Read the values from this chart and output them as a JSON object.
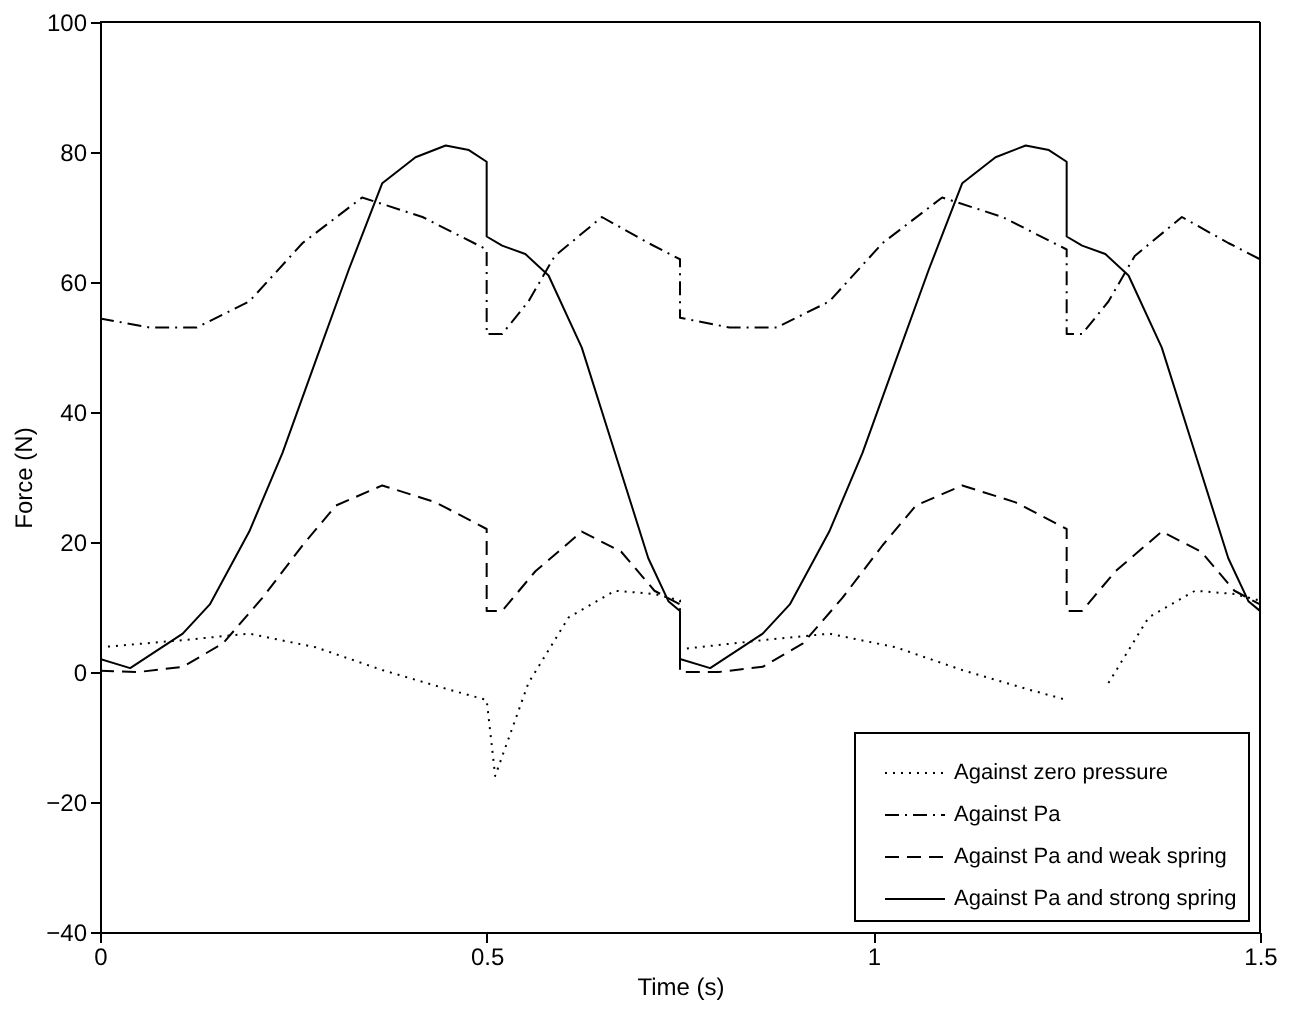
{
  "chart_data": {
    "type": "line",
    "xlabel": "Time (s)",
    "ylabel": "Force (N)",
    "xlim": [
      0,
      1.5
    ],
    "xticks": [
      0,
      0.5,
      1,
      1.5
    ],
    "ylim": [
      -40,
      100
    ],
    "yticks": [
      -40,
      -20,
      0,
      20,
      40,
      60,
      80,
      100
    ],
    "grid": false,
    "legend": "bottom right",
    "marker": "none",
    "series": [
      {
        "name": "Against zero pressure",
        "color": "#000000",
        "line_style": "dotted",
        "x": [
          0,
          0.107,
          0.193,
          0.279,
          0.365,
          0.451,
          0.5,
          0.511,
          0.554,
          0.606,
          0.666,
          0.717,
          0.75,
          0.75,
          0.857,
          0.943,
          1.029,
          1.115,
          1.201,
          1.25,
          1.261,
          1.304,
          1.356,
          1.416,
          1.467,
          1.5
        ],
        "values": [
          3.8,
          4.9,
          5.9,
          3.8,
          0.3,
          -2.7,
          -4.3,
          -16,
          -1.7,
          8.4,
          12.5,
          12,
          11,
          3.5,
          4.9,
          5.9,
          3.8,
          0.3,
          -2.7,
          -4.3,
          null,
          -1.7,
          8.4,
          12.5,
          12,
          11
        ]
      },
      {
        "name": "Against Pa",
        "color": "#000000",
        "line_style": "dashdot",
        "x": [
          0,
          0.064,
          0.125,
          0.193,
          0.262,
          0.339,
          0.417,
          0.5,
          0.5,
          0.52,
          0.554,
          0.588,
          0.649,
          0.709,
          0.75,
          0.75,
          0.814,
          0.875,
          0.943,
          1.012,
          1.089,
          1.167,
          1.25,
          1.25,
          1.27,
          1.304,
          1.338,
          1.399,
          1.459,
          1.5
        ],
        "values": [
          54.4,
          53,
          53,
          57,
          66,
          73,
          70,
          65,
          52,
          52,
          57,
          64,
          70,
          66,
          63.5,
          54.5,
          53,
          53,
          57,
          66,
          73,
          70,
          65,
          52,
          52,
          57,
          64,
          70,
          66,
          63.5
        ]
      },
      {
        "name": "Against Pa and weak spring",
        "color": "#000000",
        "line_style": "dashed",
        "x": [
          0,
          0.05,
          0.107,
          0.159,
          0.21,
          0.262,
          0.305,
          0.365,
          0.434,
          0.5,
          0.5,
          0.52,
          0.563,
          0.623,
          0.674,
          0.717,
          0.75,
          0.75,
          0.8,
          0.857,
          0.909,
          0.96,
          1.012,
          1.055,
          1.115,
          1.184,
          1.25,
          1.25,
          1.27,
          1.313,
          1.373,
          1.424,
          1.467,
          1.5
        ],
        "values": [
          0.2,
          0,
          0.8,
          4.4,
          11.4,
          19.5,
          25.6,
          28.7,
          26.1,
          22,
          9.4,
          9.4,
          15.5,
          21.6,
          18.5,
          12.5,
          10.4,
          0,
          0,
          0.8,
          4.4,
          11.4,
          19.5,
          25.6,
          28.7,
          26.1,
          22,
          9.4,
          9.4,
          15.5,
          21.6,
          18.5,
          12.5,
          10.4
        ]
      },
      {
        "name": "Against Pa and strong spring",
        "color": "#000000",
        "line_style": "solid",
        "x": [
          0,
          0.039,
          0.107,
          0.142,
          0.193,
          0.236,
          0.279,
          0.322,
          0.365,
          0.408,
          0.447,
          0.477,
          0.5,
          0.5,
          0.52,
          0.55,
          0.58,
          0.623,
          0.666,
          0.709,
          0.735,
          0.75,
          0.75,
          0.789,
          0.857,
          0.892,
          0.943,
          0.986,
          1.029,
          1.072,
          1.115,
          1.158,
          1.197,
          1.227,
          1.25,
          1.25,
          1.27,
          1.3,
          1.33,
          1.373,
          1.416,
          1.459,
          1.485,
          1.5
        ],
        "values": [
          2,
          0.6,
          5.9,
          10.4,
          21.6,
          33.7,
          47.9,
          62,
          75.2,
          79.2,
          81,
          80.3,
          78.5,
          67,
          65.6,
          64.3,
          61,
          49.9,
          33.7,
          17.5,
          10.9,
          9.4,
          2,
          0.6,
          5.9,
          10.4,
          21.6,
          33.7,
          47.9,
          62,
          75.2,
          79.2,
          81,
          80.3,
          78.5,
          67,
          65.6,
          64.3,
          61,
          49.9,
          33.7,
          17.5,
          10.9,
          9.4
        ]
      }
    ]
  }
}
